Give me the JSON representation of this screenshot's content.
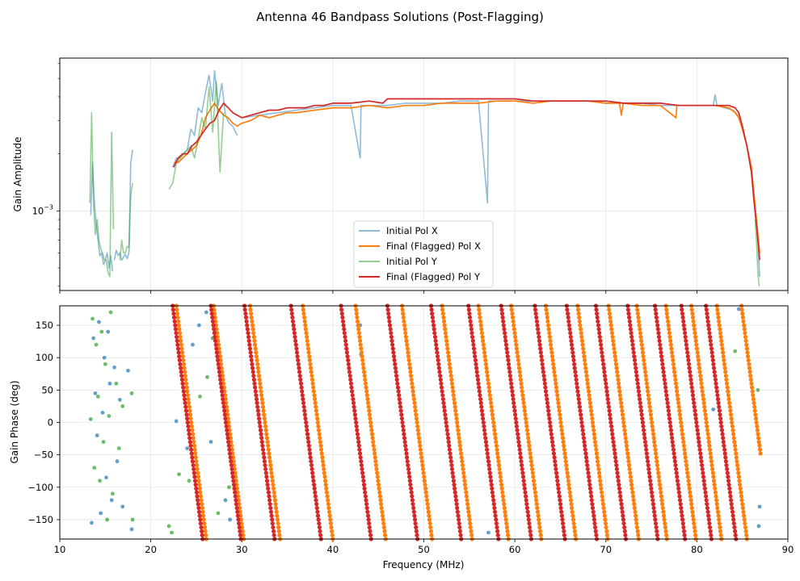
{
  "chart_data": {
    "title": "Antenna 46 Bandpass Solutions (Post-Flagging)",
    "xlabel": "Frequency (MHz)",
    "xlim": [
      10,
      90
    ],
    "xticks": [
      "10",
      "20",
      "30",
      "40",
      "50",
      "60",
      "70",
      "80",
      "90"
    ],
    "colors": {
      "initial_x": "#1f77b4",
      "final_x": "#ff7f0e",
      "initial_y": "#2ca02c",
      "final_y": "#d62728",
      "grid": "#e6e6e6"
    },
    "panels": [
      {
        "type": "line",
        "ylabel": "Gain Amplitude",
        "yscale": "log",
        "ylim": [
          0.00038,
          0.0064
        ],
        "yticks": [
          {
            "value": 0.001,
            "label": "10",
            "exp": "−3"
          }
        ],
        "legend": {
          "position": "lower-center",
          "entries": [
            "Initial Pol X",
            "Final (Flagged) Pol X",
            "Initial Pol Y",
            "Final (Flagged) Pol Y"
          ]
        },
        "series": [
          {
            "name": "Initial Pol X",
            "color_key": "initial_x",
            "alpha": 0.5,
            "segments": [
              {
                "x": [
                  13.4,
                  13.6,
                  13.8,
                  14.0,
                  14.2,
                  14.4,
                  14.6,
                  14.8,
                  15.0,
                  15.2,
                  15.4,
                  15.6,
                  15.8
                ],
                "y": [
                  0.00095,
                  0.0018,
                  0.0011,
                  0.00085,
                  0.0007,
                  0.00058,
                  0.0006,
                  0.00052,
                  0.00055,
                  0.0006,
                  0.0005,
                  0.00058,
                  0.00048
                ]
              },
              {
                "x": [
                  16.0,
                  16.2,
                  16.4,
                  16.6,
                  16.8,
                  17.0,
                  17.2,
                  17.4,
                  17.6,
                  17.8,
                  18.0
                ],
                "y": [
                  0.00055,
                  0.00062,
                  0.00058,
                  0.0006,
                  0.00055,
                  0.00057,
                  0.00059,
                  0.00056,
                  0.0006,
                  0.0018,
                  0.0021
                ]
              },
              {
                "x": [
                  22.4,
                  22.8,
                  23.2,
                  23.6,
                  24.0,
                  24.4,
                  24.8,
                  25.2,
                  25.6,
                  26.0,
                  26.4,
                  26.8,
                  27.0,
                  27.4,
                  27.8,
                  28.2,
                  28.6,
                  29.0,
                  29.5
                ],
                "y": [
                  0.0017,
                  0.0019,
                  0.0019,
                  0.002,
                  0.0021,
                  0.0027,
                  0.0025,
                  0.0035,
                  0.0033,
                  0.0042,
                  0.0052,
                  0.0038,
                  0.0055,
                  0.0036,
                  0.0047,
                  0.0032,
                  0.0029,
                  0.0028,
                  0.0025
                ]
              },
              {
                "x": [
                  30,
                  32,
                  34,
                  36,
                  38,
                  40,
                  42,
                  43.0,
                  43.1,
                  43.2,
                  44,
                  46,
                  48,
                  50,
                  52,
                  54,
                  56,
                  57.0,
                  57.1,
                  57.2,
                  58,
                  60,
                  62,
                  64,
                  66,
                  68,
                  70,
                  72,
                  74,
                  76,
                  78,
                  80,
                  81.8,
                  82.0,
                  82.2,
                  83,
                  84,
                  84.5,
                  85,
                  85.5,
                  86,
                  86.3,
                  86.5,
                  86.7,
                  86.9
                ],
                "y": [
                  0.0031,
                  0.0032,
                  0.0033,
                  0.0034,
                  0.0035,
                  0.0036,
                  0.0036,
                  0.0019,
                  0.0036,
                  0.0036,
                  0.0036,
                  0.0036,
                  0.0037,
                  0.0037,
                  0.0037,
                  0.0038,
                  0.0038,
                  0.0011,
                  0.0038,
                  0.0038,
                  0.0038,
                  0.0038,
                  0.0038,
                  0.0038,
                  0.0038,
                  0.0038,
                  0.0037,
                  0.0037,
                  0.0037,
                  0.0036,
                  0.0036,
                  0.0036,
                  0.0036,
                  0.0041,
                  0.0036,
                  0.0035,
                  0.0034,
                  0.0032,
                  0.0027,
                  0.0022,
                  0.0016,
                  0.0011,
                  0.0009,
                  0.0007,
                  0.00045
                ]
              }
            ]
          },
          {
            "name": "Final (Flagged) Pol X",
            "color_key": "final_x",
            "alpha": 1,
            "segments": [
              {
                "x": [
                  22.6,
                  23.0,
                  23.5,
                  24.0,
                  24.5,
                  25.0,
                  25.5,
                  26.0,
                  26.5,
                  27.0,
                  27.5,
                  28.0,
                  28.5,
                  29.0,
                  29.5,
                  30,
                  31,
                  32,
                  33,
                  34,
                  35,
                  36,
                  38,
                  40,
                  42,
                  44,
                  46,
                  48,
                  50,
                  52,
                  54,
                  56,
                  58,
                  60,
                  62,
                  64,
                  66,
                  68,
                  70,
                  71.5,
                  71.7,
                  71.9,
                  74,
                  76,
                  77.7,
                  77.8,
                  77.9,
                  80,
                  82,
                  83.5,
                  84.2,
                  84.6,
                  85,
                  85.5,
                  86,
                  86.3,
                  86.6,
                  86.9
                ],
                "y": [
                  0.0018,
                  0.0018,
                  0.0019,
                  0.002,
                  0.0021,
                  0.0022,
                  0.0025,
                  0.0031,
                  0.0034,
                  0.0037,
                  0.0034,
                  0.0032,
                  0.0031,
                  0.0029,
                  0.0028,
                  0.0029,
                  0.003,
                  0.0032,
                  0.0031,
                  0.0032,
                  0.0033,
                  0.0033,
                  0.0034,
                  0.0035,
                  0.0035,
                  0.0036,
                  0.0035,
                  0.0036,
                  0.0036,
                  0.0037,
                  0.0037,
                  0.0037,
                  0.0038,
                  0.0038,
                  0.0037,
                  0.0038,
                  0.0038,
                  0.0038,
                  0.0037,
                  0.0037,
                  0.0032,
                  0.0037,
                  0.0036,
                  0.0036,
                  0.0031,
                  0.0036,
                  0.0036,
                  0.0036,
                  0.0036,
                  0.0035,
                  0.0033,
                  0.0031,
                  0.0027,
                  0.0022,
                  0.0017,
                  0.0012,
                  0.00085,
                  0.0006
                ]
              }
            ]
          },
          {
            "name": "Initial Pol Y",
            "color_key": "initial_y",
            "alpha": 0.5,
            "segments": [
              {
                "x": [
                  13.3,
                  13.5,
                  13.7,
                  13.9,
                  14.1,
                  14.3,
                  14.5,
                  14.7,
                  14.9,
                  15.1,
                  15.3,
                  15.5,
                  15.7,
                  15.9
                ],
                "y": [
                  0.0011,
                  0.0033,
                  0.0011,
                  0.00075,
                  0.0009,
                  0.0007,
                  0.00063,
                  0.0006,
                  0.00055,
                  0.00055,
                  0.00047,
                  0.00045,
                  0.0026,
                  0.0008
                ]
              },
              {
                "x": [
                  16.6,
                  16.8,
                  17.0,
                  17.2,
                  17.4,
                  17.6,
                  17.8,
                  18.0
                ],
                "y": [
                  0.00055,
                  0.0007,
                  0.0006,
                  0.0006,
                  0.00065,
                  0.00064,
                  0.0012,
                  0.0014
                ]
              },
              {
                "x": [
                  22.0,
                  22.4,
                  22.8,
                  23.2,
                  23.6,
                  24.0,
                  24.4,
                  24.8,
                  25.2,
                  25.6,
                  26.0,
                  26.4,
                  26.8,
                  27.2,
                  27.6,
                  28.0
                ],
                "y": [
                  0.0013,
                  0.0014,
                  0.0018,
                  0.0019,
                  0.002,
                  0.0021,
                  0.0022,
                  0.0019,
                  0.0024,
                  0.0031,
                  0.0027,
                  0.0045,
                  0.0026,
                  0.0048,
                  0.0016,
                  0.0033
                ]
              },
              {
                "x": [
                  86.4,
                  86.55,
                  86.7,
                  86.85
                ],
                "y": [
                  0.0009,
                  0.0007,
                  0.00048,
                  0.0004
                ]
              }
            ]
          },
          {
            "name": "Final (Flagged) Pol Y",
            "color_key": "final_y",
            "alpha": 1,
            "segments": [
              {
                "x": [
                  22.5,
                  23.0,
                  23.5,
                  24.0,
                  24.5,
                  25.0,
                  25.5,
                  26.0,
                  26.5,
                  27.0,
                  27.5,
                  28.0,
                  28.5,
                  29.0,
                  29.5,
                  30,
                  31,
                  32,
                  33,
                  34,
                  35,
                  36,
                  37,
                  38,
                  39,
                  40,
                  42,
                  44,
                  45.5,
                  46,
                  48,
                  50,
                  52,
                  54,
                  56,
                  58,
                  60,
                  62,
                  64,
                  66,
                  68,
                  70,
                  72,
                  74,
                  76,
                  78,
                  80,
                  82,
                  83.5,
                  84.2,
                  84.6,
                  85,
                  85.5,
                  86,
                  86.3,
                  86.6,
                  86.9
                ],
                "y": [
                  0.0017,
                  0.0019,
                  0.002,
                  0.002,
                  0.0022,
                  0.0023,
                  0.0025,
                  0.0027,
                  0.0029,
                  0.003,
                  0.0034,
                  0.0037,
                  0.0035,
                  0.0033,
                  0.0032,
                  0.0031,
                  0.0032,
                  0.0033,
                  0.0034,
                  0.0034,
                  0.0035,
                  0.0035,
                  0.0035,
                  0.0036,
                  0.0036,
                  0.0037,
                  0.0037,
                  0.0038,
                  0.0037,
                  0.0039,
                  0.0039,
                  0.0039,
                  0.0039,
                  0.0039,
                  0.0039,
                  0.0039,
                  0.0039,
                  0.0038,
                  0.0038,
                  0.0038,
                  0.0038,
                  0.0038,
                  0.0037,
                  0.0037,
                  0.0037,
                  0.0036,
                  0.0036,
                  0.0036,
                  0.0036,
                  0.0035,
                  0.0033,
                  0.0028,
                  0.0022,
                  0.0016,
                  0.0011,
                  0.0008,
                  0.00055
                ]
              }
            ]
          }
        ]
      },
      {
        "type": "scatter",
        "ylabel": "Gain Phase (deg)",
        "ylim": [
          -180,
          180
        ],
        "yticks": [
          "−150",
          "−100",
          "−50",
          "0",
          "50",
          "100",
          "150"
        ],
        "yvals": [
          -150,
          -100,
          -50,
          0,
          50,
          100,
          150
        ],
        "wraps": [
          {
            "pol": "final_x",
            "x_start": [
              22.8,
              26.9,
              30.9,
              36.7,
              42.5,
              47.6,
              52.0,
              56.0,
              59.6,
              63.4,
              66.9,
              70.3,
              73.4,
              76.6,
              79.4,
              82.2,
              84.9
            ]
          },
          {
            "pol": "final_y",
            "x_start": [
              22.4,
              26.6,
              30.3,
              35.4,
              40.9,
              46.0,
              50.8,
              54.9,
              58.5,
              62.2,
              65.7,
              68.9,
              72.4,
              75.4,
              78.3,
              81.0
            ]
          }
        ],
        "scatter_noise": {
          "initial_x": {
            "x": [
              13.5,
              13.7,
              13.9,
              14.1,
              14.3,
              14.5,
              14.7,
              14.9,
              15.1,
              15.3,
              15.5,
              15.7,
              16.0,
              16.3,
              16.6,
              16.9,
              17.5,
              17.9,
              22.8,
              24.0,
              24.6,
              25.3,
              26.1,
              26.6,
              27.1,
              28.2,
              28.7,
              43.0,
              43.1,
              57.1,
              81.8,
              84.6,
              86.8,
              86.9
            ],
            "y": [
              -155,
              130,
              45,
              -20,
              155,
              -140,
              15,
              100,
              -85,
              140,
              60,
              -120,
              85,
              -60,
              35,
              -130,
              80,
              -165,
              2,
              -40,
              120,
              150,
              170,
              -30,
              140,
              -120,
              -150,
              150,
              105,
              -170,
              20,
              175,
              -160,
              -130
            ]
          },
          "initial_y": {
            "x": [
              13.4,
              13.6,
              13.8,
              14.0,
              14.2,
              14.4,
              14.6,
              14.8,
              15.0,
              15.2,
              15.4,
              15.6,
              15.8,
              16.2,
              16.5,
              16.9,
              17.9,
              18.0,
              22.0,
              22.3,
              23.1,
              24.2,
              25.4,
              26.2,
              26.8,
              27.4,
              28.0,
              28.6,
              84.2,
              86.7,
              86.9
            ],
            "y": [
              5,
              160,
              -70,
              120,
              40,
              -90,
              140,
              -30,
              90,
              -150,
              10,
              170,
              -110,
              60,
              -40,
              25,
              45,
              -150,
              -160,
              -170,
              -80,
              -90,
              40,
              70,
              130,
              -140,
              50,
              -100,
              110,
              50,
              -35
            ]
          }
        }
      }
    ]
  }
}
